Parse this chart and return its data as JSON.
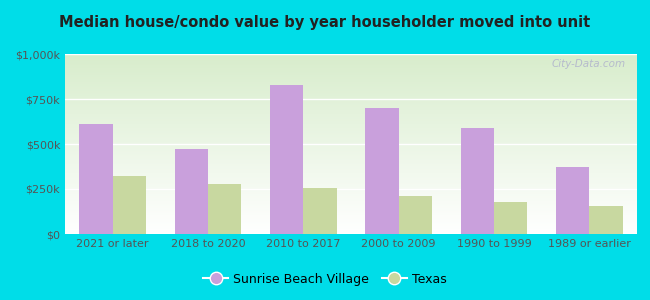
{
  "title": "Median house/condo value by year householder moved into unit",
  "categories": [
    "2021 or later",
    "2018 to 2020",
    "2010 to 2017",
    "2000 to 2009",
    "1990 to 1999",
    "1989 or earlier"
  ],
  "sunrise_values": [
    610000,
    470000,
    830000,
    700000,
    590000,
    370000
  ],
  "texas_values": [
    320000,
    280000,
    255000,
    210000,
    180000,
    155000
  ],
  "ylim": [
    0,
    1000000
  ],
  "yticks": [
    0,
    250000,
    500000,
    750000,
    1000000
  ],
  "ytick_labels": [
    "$0",
    "$250k",
    "$500k",
    "$750k",
    "$1,000k"
  ],
  "sunrise_color": "#c9a0dc",
  "texas_color": "#c8d8a0",
  "background_color": "#00dde8",
  "legend_sunrise": "Sunrise Beach Village",
  "legend_texas": "Texas",
  "watermark": "City-Data.com",
  "bar_width": 0.35
}
